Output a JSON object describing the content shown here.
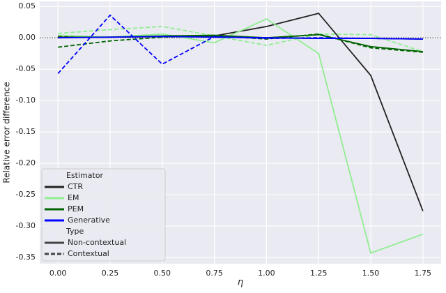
{
  "chart_data": {
    "type": "line",
    "x_label": "η",
    "y_label": "Relative error difference",
    "x": [
      0,
      0.25,
      0.5,
      0.75,
      1,
      1.25,
      1.5,
      1.75
    ],
    "series": [
      {
        "name": "CTR",
        "color": "#222222",
        "values": [
          0.001,
          0.001,
          0.002,
          0.003,
          0.018,
          0.039,
          -0.06,
          -0.276
        ],
        "contextual_values": [
          0.002,
          0.001,
          0.002,
          0.003,
          0.0,
          -0.001,
          -0.001,
          -0.002
        ]
      },
      {
        "name": "EM",
        "color": "#90ee90",
        "values": [
          0.004,
          0.001,
          0.006,
          -0.008,
          0.03,
          -0.025,
          -0.343,
          -0.313
        ],
        "contextual_values": [
          0.007,
          0.013,
          0.018,
          0.003,
          -0.012,
          0.006,
          0.005,
          -0.022
        ]
      },
      {
        "name": "PEM",
        "color": "#006400",
        "values": [
          0.001,
          0.001,
          0.003,
          0.004,
          0.0,
          0.005,
          -0.014,
          -0.022
        ],
        "contextual_values": [
          -0.015,
          -0.005,
          0.001,
          0.003,
          -0.002,
          0.006,
          -0.016,
          -0.023
        ]
      },
      {
        "name": "Generative",
        "color": "#0000ff",
        "values": [
          0.0,
          0.001,
          0.002,
          0.001,
          0.0,
          -0.001,
          -0.001,
          -0.002
        ],
        "contextual_values": [
          -0.057,
          0.036,
          -0.042,
          0.002,
          -0.001,
          0.0,
          -0.001,
          -0.002
        ]
      }
    ],
    "legend_title": "Estimator",
    "style_title": "Type",
    "styles": [
      "Non-contextual",
      "Contextual"
    ],
    "hline": 0,
    "xlim": [
      -0.0875,
      1.8375
    ],
    "xticks": [
      {
        "value": 0,
        "label": "0.00"
      },
      0.25,
      {
        "value": 0.5,
        "label": "0.50"
      },
      0.75,
      {
        "value": 1,
        "label": "1.00"
      },
      1.25,
      {
        "value": 1.5,
        "label": "1.50"
      },
      1.75
    ],
    "ylim": [
      -0.36,
      0.058
    ],
    "yticks": [
      0.05,
      {
        "value": 0,
        "label": "0.00"
      },
      -0.05,
      {
        "value": -0.1,
        "label": "-0.10"
      },
      -0.15,
      {
        "value": -0.2,
        "label": "-0.20"
      },
      -0.25,
      {
        "value": -0.3,
        "label": "-0.30"
      },
      -0.35
    ],
    "grid": true,
    "legend_position": "lower left"
  }
}
